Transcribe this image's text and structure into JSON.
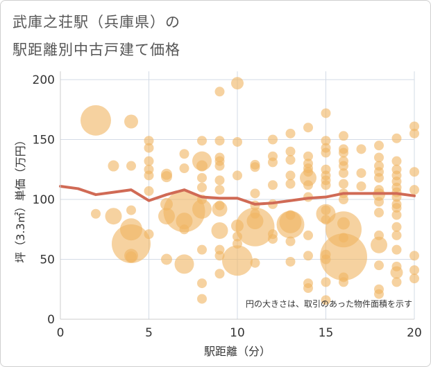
{
  "chart_data": {
    "type": "scatter",
    "title": "武庫之荘駅（兵庫県）の",
    "subtitle": "駅距離別中古戸建て価格",
    "xlabel": "駅距離（分）",
    "ylabel": "坪（3.3㎡）単価（万円）",
    "xlim": [
      0,
      20
    ],
    "ylim": [
      0,
      205
    ],
    "xticks": [
      0,
      5,
      10,
      15,
      20
    ],
    "yticks": [
      0,
      50,
      100,
      150,
      200
    ],
    "xtick_labels": [
      "0",
      "5",
      "10",
      "15",
      "20"
    ],
    "ytick_labels": [
      "0",
      "50",
      "100",
      "150",
      "200"
    ],
    "annotation": "円の大きさは、取引のあった物件面積を示す",
    "bubble_color": "#f0b460",
    "line_color": "#d06a55",
    "points": [
      {
        "x": 2,
        "y": 166,
        "s": 22
      },
      {
        "x": 2,
        "y": 88,
        "s": 7
      },
      {
        "x": 3,
        "y": 128,
        "s": 8
      },
      {
        "x": 3,
        "y": 86,
        "s": 12
      },
      {
        "x": 4,
        "y": 165,
        "s": 10
      },
      {
        "x": 4,
        "y": 128,
        "s": 7
      },
      {
        "x": 4,
        "y": 91,
        "s": 7
      },
      {
        "x": 4,
        "y": 75,
        "s": 16
      },
      {
        "x": 4,
        "y": 63,
        "s": 28
      },
      {
        "x": 4,
        "y": 53,
        "s": 10
      },
      {
        "x": 4,
        "y": 52,
        "s": 8
      },
      {
        "x": 5,
        "y": 149,
        "s": 7
      },
      {
        "x": 5,
        "y": 143,
        "s": 7
      },
      {
        "x": 5,
        "y": 132,
        "s": 7
      },
      {
        "x": 5,
        "y": 125,
        "s": 7
      },
      {
        "x": 5,
        "y": 120,
        "s": 7
      },
      {
        "x": 5,
        "y": 107,
        "s": 7
      },
      {
        "x": 5,
        "y": 71,
        "s": 7
      },
      {
        "x": 6,
        "y": 121,
        "s": 8
      },
      {
        "x": 6,
        "y": 119,
        "s": 8
      },
      {
        "x": 6,
        "y": 96,
        "s": 9
      },
      {
        "x": 6,
        "y": 86,
        "s": 12
      },
      {
        "x": 6,
        "y": 50,
        "s": 8
      },
      {
        "x": 7,
        "y": 138,
        "s": 7
      },
      {
        "x": 7,
        "y": 126,
        "s": 7
      },
      {
        "x": 7,
        "y": 90,
        "s": 30
      },
      {
        "x": 7,
        "y": 82,
        "s": 12
      },
      {
        "x": 7,
        "y": 75,
        "s": 7
      },
      {
        "x": 7,
        "y": 46,
        "s": 14
      },
      {
        "x": 8,
        "y": 149,
        "s": 7
      },
      {
        "x": 8,
        "y": 132,
        "s": 14
      },
      {
        "x": 8,
        "y": 128,
        "s": 8
      },
      {
        "x": 8,
        "y": 118,
        "s": 7
      },
      {
        "x": 8,
        "y": 110,
        "s": 7
      },
      {
        "x": 8,
        "y": 100,
        "s": 7
      },
      {
        "x": 8,
        "y": 92,
        "s": 14
      },
      {
        "x": 8,
        "y": 58,
        "s": 7
      },
      {
        "x": 8,
        "y": 30,
        "s": 7
      },
      {
        "x": 8,
        "y": 17,
        "s": 7
      },
      {
        "x": 9,
        "y": 190,
        "s": 7
      },
      {
        "x": 9,
        "y": 149,
        "s": 7
      },
      {
        "x": 9,
        "y": 135,
        "s": 7
      },
      {
        "x": 9,
        "y": 132,
        "s": 7
      },
      {
        "x": 9,
        "y": 128,
        "s": 7
      },
      {
        "x": 9,
        "y": 116,
        "s": 7
      },
      {
        "x": 9,
        "y": 108,
        "s": 7
      },
      {
        "x": 9,
        "y": 95,
        "s": 7
      },
      {
        "x": 9,
        "y": 92,
        "s": 11
      },
      {
        "x": 9,
        "y": 74,
        "s": 12
      },
      {
        "x": 9,
        "y": 58,
        "s": 7
      },
      {
        "x": 9,
        "y": 53,
        "s": 7
      },
      {
        "x": 9,
        "y": 38,
        "s": 7
      },
      {
        "x": 10,
        "y": 197,
        "s": 9
      },
      {
        "x": 10,
        "y": 148,
        "s": 7
      },
      {
        "x": 10,
        "y": 120,
        "s": 7
      },
      {
        "x": 10,
        "y": 78,
        "s": 9
      },
      {
        "x": 10,
        "y": 69,
        "s": 7
      },
      {
        "x": 10,
        "y": 63,
        "s": 7
      },
      {
        "x": 10,
        "y": 49,
        "s": 22
      },
      {
        "x": 11,
        "y": 129,
        "s": 7
      },
      {
        "x": 11,
        "y": 127,
        "s": 7
      },
      {
        "x": 11,
        "y": 105,
        "s": 7
      },
      {
        "x": 11,
        "y": 95,
        "s": 7
      },
      {
        "x": 11,
        "y": 88,
        "s": 7
      },
      {
        "x": 11,
        "y": 82,
        "s": 12
      },
      {
        "x": 11,
        "y": 77,
        "s": 28
      },
      {
        "x": 11,
        "y": 47,
        "s": 7
      },
      {
        "x": 12,
        "y": 150,
        "s": 7
      },
      {
        "x": 12,
        "y": 136,
        "s": 7
      },
      {
        "x": 12,
        "y": 131,
        "s": 7
      },
      {
        "x": 12,
        "y": 112,
        "s": 7
      },
      {
        "x": 12,
        "y": 96,
        "s": 7
      },
      {
        "x": 12,
        "y": 71,
        "s": 7
      },
      {
        "x": 12,
        "y": 67,
        "s": 7
      },
      {
        "x": 13,
        "y": 155,
        "s": 7
      },
      {
        "x": 13,
        "y": 140,
        "s": 7
      },
      {
        "x": 13,
        "y": 133,
        "s": 7
      },
      {
        "x": 13,
        "y": 120,
        "s": 7
      },
      {
        "x": 13,
        "y": 113,
        "s": 7
      },
      {
        "x": 13,
        "y": 87,
        "s": 7
      },
      {
        "x": 13,
        "y": 81,
        "s": 16
      },
      {
        "x": 13,
        "y": 79,
        "s": 20
      },
      {
        "x": 13,
        "y": 65,
        "s": 7
      },
      {
        "x": 13,
        "y": 48,
        "s": 7
      },
      {
        "x": 14,
        "y": 160,
        "s": 7
      },
      {
        "x": 14,
        "y": 136,
        "s": 7
      },
      {
        "x": 14,
        "y": 130,
        "s": 7
      },
      {
        "x": 14,
        "y": 126,
        "s": 7
      },
      {
        "x": 14,
        "y": 123,
        "s": 7
      },
      {
        "x": 14,
        "y": 118,
        "s": 12
      },
      {
        "x": 14,
        "y": 112,
        "s": 7
      },
      {
        "x": 14,
        "y": 102,
        "s": 7
      },
      {
        "x": 14,
        "y": 70,
        "s": 7
      },
      {
        "x": 14,
        "y": 53,
        "s": 7
      },
      {
        "x": 14,
        "y": 30,
        "s": 7
      },
      {
        "x": 14,
        "y": 26,
        "s": 7
      },
      {
        "x": 15,
        "y": 172,
        "s": 7
      },
      {
        "x": 15,
        "y": 149,
        "s": 7
      },
      {
        "x": 15,
        "y": 143,
        "s": 7
      },
      {
        "x": 15,
        "y": 139,
        "s": 7
      },
      {
        "x": 15,
        "y": 125,
        "s": 7
      },
      {
        "x": 15,
        "y": 120,
        "s": 7
      },
      {
        "x": 15,
        "y": 116,
        "s": 7
      },
      {
        "x": 15,
        "y": 112,
        "s": 7
      },
      {
        "x": 15,
        "y": 91,
        "s": 7
      },
      {
        "x": 15,
        "y": 88,
        "s": 14
      },
      {
        "x": 15,
        "y": 83,
        "s": 7
      },
      {
        "x": 15,
        "y": 54,
        "s": 7
      },
      {
        "x": 15,
        "y": 50,
        "s": 7
      },
      {
        "x": 15,
        "y": 31,
        "s": 7
      },
      {
        "x": 15,
        "y": 16,
        "s": 7
      },
      {
        "x": 16,
        "y": 153,
        "s": 7
      },
      {
        "x": 16,
        "y": 142,
        "s": 7
      },
      {
        "x": 16,
        "y": 139,
        "s": 7
      },
      {
        "x": 16,
        "y": 132,
        "s": 7
      },
      {
        "x": 16,
        "y": 128,
        "s": 7
      },
      {
        "x": 16,
        "y": 122,
        "s": 7
      },
      {
        "x": 16,
        "y": 113,
        "s": 7
      },
      {
        "x": 16,
        "y": 105,
        "s": 7
      },
      {
        "x": 16,
        "y": 100,
        "s": 7
      },
      {
        "x": 16,
        "y": 80,
        "s": 9
      },
      {
        "x": 16,
        "y": 75,
        "s": 26
      },
      {
        "x": 16,
        "y": 68,
        "s": 7
      },
      {
        "x": 16,
        "y": 52,
        "s": 34
      },
      {
        "x": 16,
        "y": 35,
        "s": 7
      },
      {
        "x": 16,
        "y": 31,
        "s": 7
      },
      {
        "x": 17,
        "y": 142,
        "s": 7
      },
      {
        "x": 17,
        "y": 122,
        "s": 7
      },
      {
        "x": 17,
        "y": 111,
        "s": 7
      },
      {
        "x": 18,
        "y": 145,
        "s": 7
      },
      {
        "x": 18,
        "y": 135,
        "s": 7
      },
      {
        "x": 18,
        "y": 128,
        "s": 7
      },
      {
        "x": 18,
        "y": 123,
        "s": 7
      },
      {
        "x": 18,
        "y": 118,
        "s": 7
      },
      {
        "x": 18,
        "y": 108,
        "s": 7
      },
      {
        "x": 18,
        "y": 104,
        "s": 9
      },
      {
        "x": 18,
        "y": 98,
        "s": 7
      },
      {
        "x": 18,
        "y": 89,
        "s": 7
      },
      {
        "x": 18,
        "y": 70,
        "s": 7
      },
      {
        "x": 18,
        "y": 62,
        "s": 12
      },
      {
        "x": 18,
        "y": 45,
        "s": 7
      },
      {
        "x": 18,
        "y": 25,
        "s": 7
      },
      {
        "x": 18,
        "y": 21,
        "s": 7
      },
      {
        "x": 19,
        "y": 151,
        "s": 7
      },
      {
        "x": 19,
        "y": 132,
        "s": 7
      },
      {
        "x": 19,
        "y": 125,
        "s": 7
      },
      {
        "x": 19,
        "y": 120,
        "s": 7
      },
      {
        "x": 19,
        "y": 115,
        "s": 7
      },
      {
        "x": 19,
        "y": 110,
        "s": 7
      },
      {
        "x": 19,
        "y": 106,
        "s": 7
      },
      {
        "x": 19,
        "y": 102,
        "s": 7
      },
      {
        "x": 19,
        "y": 96,
        "s": 7
      },
      {
        "x": 19,
        "y": 93,
        "s": 7
      },
      {
        "x": 19,
        "y": 87,
        "s": 7
      },
      {
        "x": 19,
        "y": 77,
        "s": 7
      },
      {
        "x": 19,
        "y": 70,
        "s": 7
      },
      {
        "x": 19,
        "y": 58,
        "s": 7
      },
      {
        "x": 19,
        "y": 44,
        "s": 7
      },
      {
        "x": 19,
        "y": 39,
        "s": 9
      },
      {
        "x": 19,
        "y": 31,
        "s": 7
      },
      {
        "x": 20,
        "y": 161,
        "s": 7
      },
      {
        "x": 20,
        "y": 155,
        "s": 7
      },
      {
        "x": 20,
        "y": 123,
        "s": 7
      },
      {
        "x": 20,
        "y": 108,
        "s": 7
      },
      {
        "x": 20,
        "y": 53,
        "s": 7
      },
      {
        "x": 20,
        "y": 41,
        "s": 7
      },
      {
        "x": 20,
        "y": 34,
        "s": 7
      }
    ],
    "line": {
      "x": [
        0,
        1,
        2,
        3,
        4,
        5,
        6,
        7,
        8,
        9,
        10,
        11,
        12,
        13,
        14,
        15,
        16,
        17,
        18,
        19,
        20
      ],
      "y": [
        111,
        109,
        104,
        106,
        108,
        99,
        104,
        108,
        102,
        101,
        101,
        96,
        97,
        99,
        101,
        102,
        105,
        105,
        105,
        105,
        103
      ]
    }
  }
}
